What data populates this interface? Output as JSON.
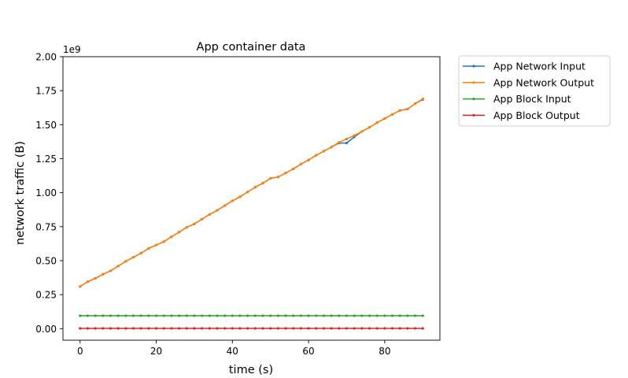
{
  "chart_data": {
    "type": "line",
    "title": "App container data",
    "xlabel": "time (s)",
    "ylabel": "network traffic (B)",
    "y_offset_label": "1e9",
    "xlim": [
      -4.5,
      94.5
    ],
    "ylim": [
      -0.085,
      2.0
    ],
    "y_scale_note": "values in units of 1e9 bytes",
    "x_ticks": [
      0,
      20,
      40,
      60,
      80
    ],
    "x_tick_labels": [
      "0",
      "20",
      "40",
      "60",
      "80"
    ],
    "y_ticks": [
      0.0,
      0.25,
      0.5,
      0.75,
      1.0,
      1.25,
      1.5,
      1.75,
      2.0
    ],
    "y_tick_labels": [
      "0.00",
      "0.25",
      "0.50",
      "0.75",
      "1.00",
      "1.25",
      "1.50",
      "1.75",
      "2.00"
    ],
    "grid": false,
    "legend_position": "outside-right-top",
    "x": [
      0,
      2,
      4,
      6,
      8,
      10,
      12,
      14,
      16,
      18,
      20,
      22,
      24,
      26,
      28,
      30,
      32,
      34,
      36,
      38,
      40,
      42,
      44,
      46,
      48,
      50,
      52,
      54,
      56,
      58,
      60,
      62,
      64,
      66,
      68,
      70,
      72,
      74,
      76,
      78,
      80,
      82,
      84,
      86,
      88,
      90
    ],
    "series": [
      {
        "name": "App Network Input",
        "color": "#1f77b4",
        "values": [
          0.31,
          0.345,
          0.37,
          0.4,
          0.425,
          0.46,
          0.495,
          0.525,
          0.555,
          0.59,
          0.615,
          0.64,
          0.675,
          0.71,
          0.745,
          0.77,
          0.805,
          0.84,
          0.87,
          0.905,
          0.94,
          0.97,
          1.005,
          1.04,
          1.07,
          1.105,
          1.115,
          1.145,
          1.175,
          1.21,
          1.24,
          1.275,
          1.305,
          1.335,
          1.365,
          1.365,
          1.41,
          1.45,
          1.48,
          1.515,
          1.545,
          1.575,
          1.605,
          1.615,
          1.655,
          1.685
        ]
      },
      {
        "name": "App Network Output",
        "color": "#ff7f0e",
        "values": [
          0.31,
          0.345,
          0.37,
          0.4,
          0.425,
          0.46,
          0.495,
          0.525,
          0.555,
          0.59,
          0.615,
          0.64,
          0.675,
          0.71,
          0.745,
          0.77,
          0.805,
          0.84,
          0.87,
          0.905,
          0.94,
          0.97,
          1.005,
          1.04,
          1.07,
          1.105,
          1.115,
          1.145,
          1.175,
          1.21,
          1.24,
          1.275,
          1.305,
          1.335,
          1.37,
          1.395,
          1.42,
          1.45,
          1.48,
          1.515,
          1.545,
          1.575,
          1.605,
          1.615,
          1.655,
          1.69
        ]
      },
      {
        "name": "App Block Input",
        "color": "#2ca02c",
        "values": [
          0.095,
          0.095,
          0.095,
          0.095,
          0.095,
          0.095,
          0.095,
          0.095,
          0.095,
          0.095,
          0.095,
          0.095,
          0.095,
          0.095,
          0.095,
          0.095,
          0.095,
          0.095,
          0.095,
          0.095,
          0.095,
          0.095,
          0.095,
          0.095,
          0.095,
          0.095,
          0.095,
          0.095,
          0.095,
          0.095,
          0.095,
          0.095,
          0.095,
          0.095,
          0.095,
          0.095,
          0.095,
          0.095,
          0.095,
          0.095,
          0.095,
          0.095,
          0.095,
          0.095,
          0.095,
          0.095
        ]
      },
      {
        "name": "App Block Output",
        "color": "#d62728",
        "values": [
          0.002,
          0.002,
          0.002,
          0.002,
          0.002,
          0.002,
          0.002,
          0.002,
          0.002,
          0.002,
          0.002,
          0.002,
          0.002,
          0.002,
          0.002,
          0.002,
          0.002,
          0.002,
          0.002,
          0.002,
          0.002,
          0.002,
          0.002,
          0.002,
          0.002,
          0.002,
          0.002,
          0.002,
          0.002,
          0.002,
          0.002,
          0.002,
          0.002,
          0.002,
          0.002,
          0.002,
          0.002,
          0.002,
          0.002,
          0.002,
          0.002,
          0.002,
          0.002,
          0.002,
          0.002,
          0.002
        ]
      }
    ]
  }
}
